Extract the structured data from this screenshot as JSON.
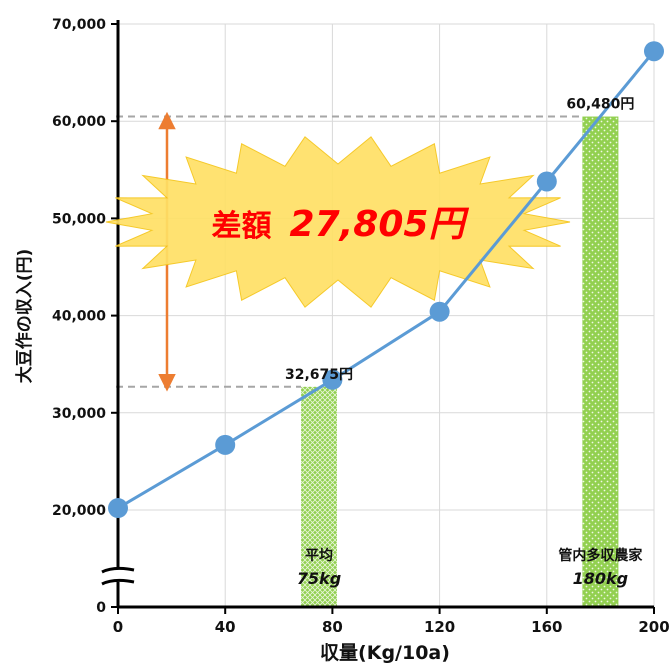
{
  "chart_data": {
    "type": "line",
    "title": "",
    "xlabel": "収量(Kg/10a)",
    "ylabel": "大豆作の収入(円)",
    "xlim": [
      0,
      200
    ],
    "ylim": [
      0,
      70000
    ],
    "y_axis_break": true,
    "x_ticks": [
      {
        "value": 0,
        "label": "0"
      },
      {
        "value": 40,
        "label": "40"
      },
      {
        "value": 80,
        "label": "80"
      },
      {
        "value": 120,
        "label": "120"
      },
      {
        "value": 160,
        "label": "160"
      },
      {
        "value": 200,
        "label": "200"
      }
    ],
    "y_ticks": [
      {
        "value": 0,
        "label": "0"
      },
      {
        "value": 20000,
        "label": "20,000"
      },
      {
        "value": 30000,
        "label": "30,000"
      },
      {
        "value": 40000,
        "label": "40,000"
      },
      {
        "value": 50000,
        "label": "50,000"
      },
      {
        "value": 60000,
        "label": "60,000"
      },
      {
        "value": 70000,
        "label": "70,000"
      }
    ],
    "grid": true,
    "series": [
      {
        "points": [
          {
            "x": 0,
            "y": 20200
          },
          {
            "x": 40,
            "y": 26700
          },
          {
            "x": 80,
            "y": 33400
          },
          {
            "x": 120,
            "y": 40400
          },
          {
            "x": 160,
            "y": 53800
          },
          {
            "x": 200,
            "y": 67200
          }
        ],
        "color": "#5b9bd5"
      }
    ],
    "bars": [
      {
        "x": 75,
        "value": 32675,
        "value_label": "32,675円",
        "label_line1": "平均",
        "label_line2": "75kg",
        "color": "#92d050"
      },
      {
        "x": 180,
        "value": 60480,
        "value_label": "60,480円",
        "label_line1": "管内多収農家",
        "label_line2": "180kg",
        "color": "#92d050"
      }
    ],
    "annotation": {
      "prefix": "差額",
      "amount": "27,805円",
      "burst_color": "#ffe066",
      "text_color": "#ff0000",
      "arrow_color": "#ed7d31"
    }
  }
}
